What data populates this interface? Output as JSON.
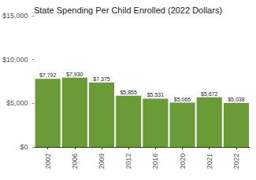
{
  "chart_data": {
    "type": "bar",
    "title": "State Spending Per Child Enrolled (2022 Dollars)",
    "categories": [
      "2002",
      "2006",
      "2009",
      "2012",
      "2016",
      "2020",
      "2021",
      "2022"
    ],
    "values": [
      7792,
      7930,
      7375,
      5855,
      5531,
      5065,
      5672,
      5038
    ],
    "value_labels": [
      "$7,792",
      "$7,930",
      "$7,375",
      "$5,855",
      "$5,531",
      "$5,065",
      "$5,672",
      "$5,038"
    ],
    "color": "#6b9b37",
    "ylim": [
      0,
      15000
    ],
    "yticks": [
      {
        "value": 0,
        "label": "$0"
      },
      {
        "value": 5000,
        "label": "$5,000"
      },
      {
        "value": 10000,
        "label": "$10,000"
      },
      {
        "value": 15000,
        "label": "$15,000"
      }
    ],
    "grid": false,
    "data_labels": true
  }
}
